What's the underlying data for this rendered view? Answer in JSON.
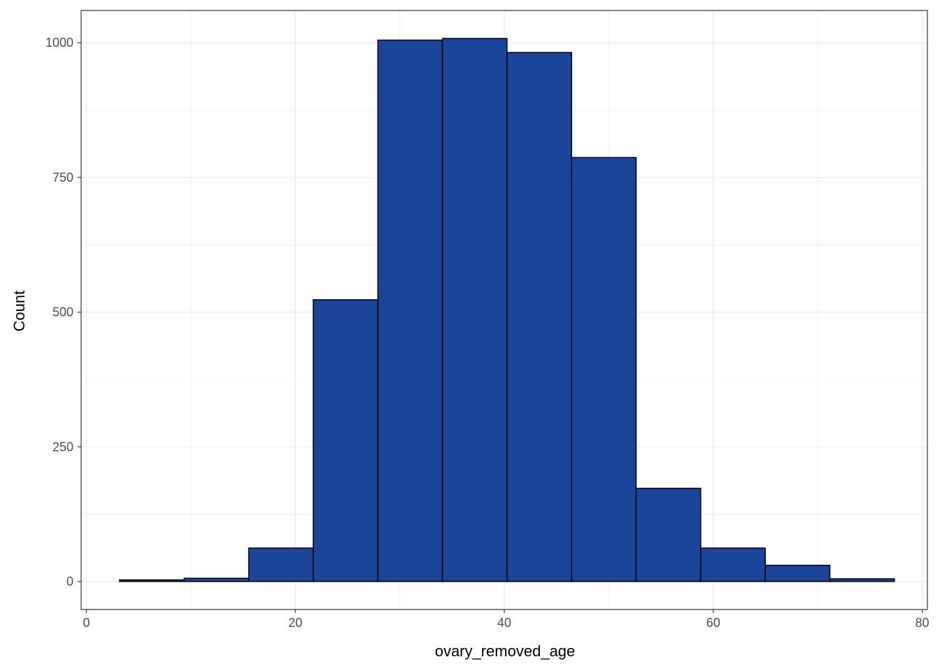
{
  "chart_data": {
    "type": "bar",
    "subtype": "histogram",
    "xlabel": "ovary_removed_age",
    "ylabel": "Count",
    "xlim": [
      -0.5,
      80.5
    ],
    "ylim": [
      -52,
      1060
    ],
    "x_ticks": [
      0,
      20,
      40,
      60,
      80
    ],
    "y_ticks": [
      0,
      250,
      500,
      750,
      1000
    ],
    "grid": true,
    "bin_width": 6.18,
    "bins": [
      {
        "start": 3.18,
        "end": 9.36,
        "count": 3
      },
      {
        "start": 9.36,
        "end": 15.54,
        "count": 6
      },
      {
        "start": 15.54,
        "end": 21.72,
        "count": 62
      },
      {
        "start": 21.72,
        "end": 27.9,
        "count": 523
      },
      {
        "start": 27.9,
        "end": 34.08,
        "count": 1005
      },
      {
        "start": 34.08,
        "end": 40.26,
        "count": 1008
      },
      {
        "start": 40.26,
        "end": 46.44,
        "count": 982
      },
      {
        "start": 46.44,
        "end": 52.62,
        "count": 787
      },
      {
        "start": 52.62,
        "end": 58.8,
        "count": 173
      },
      {
        "start": 58.8,
        "end": 64.98,
        "count": 62
      },
      {
        "start": 64.98,
        "end": 71.16,
        "count": 30
      },
      {
        "start": 71.16,
        "end": 77.34,
        "count": 5
      }
    ],
    "colors": {
      "fill": "#1a4599",
      "outline": "#000000",
      "grid": "#ebebeb",
      "panel_border": "#333333"
    }
  }
}
